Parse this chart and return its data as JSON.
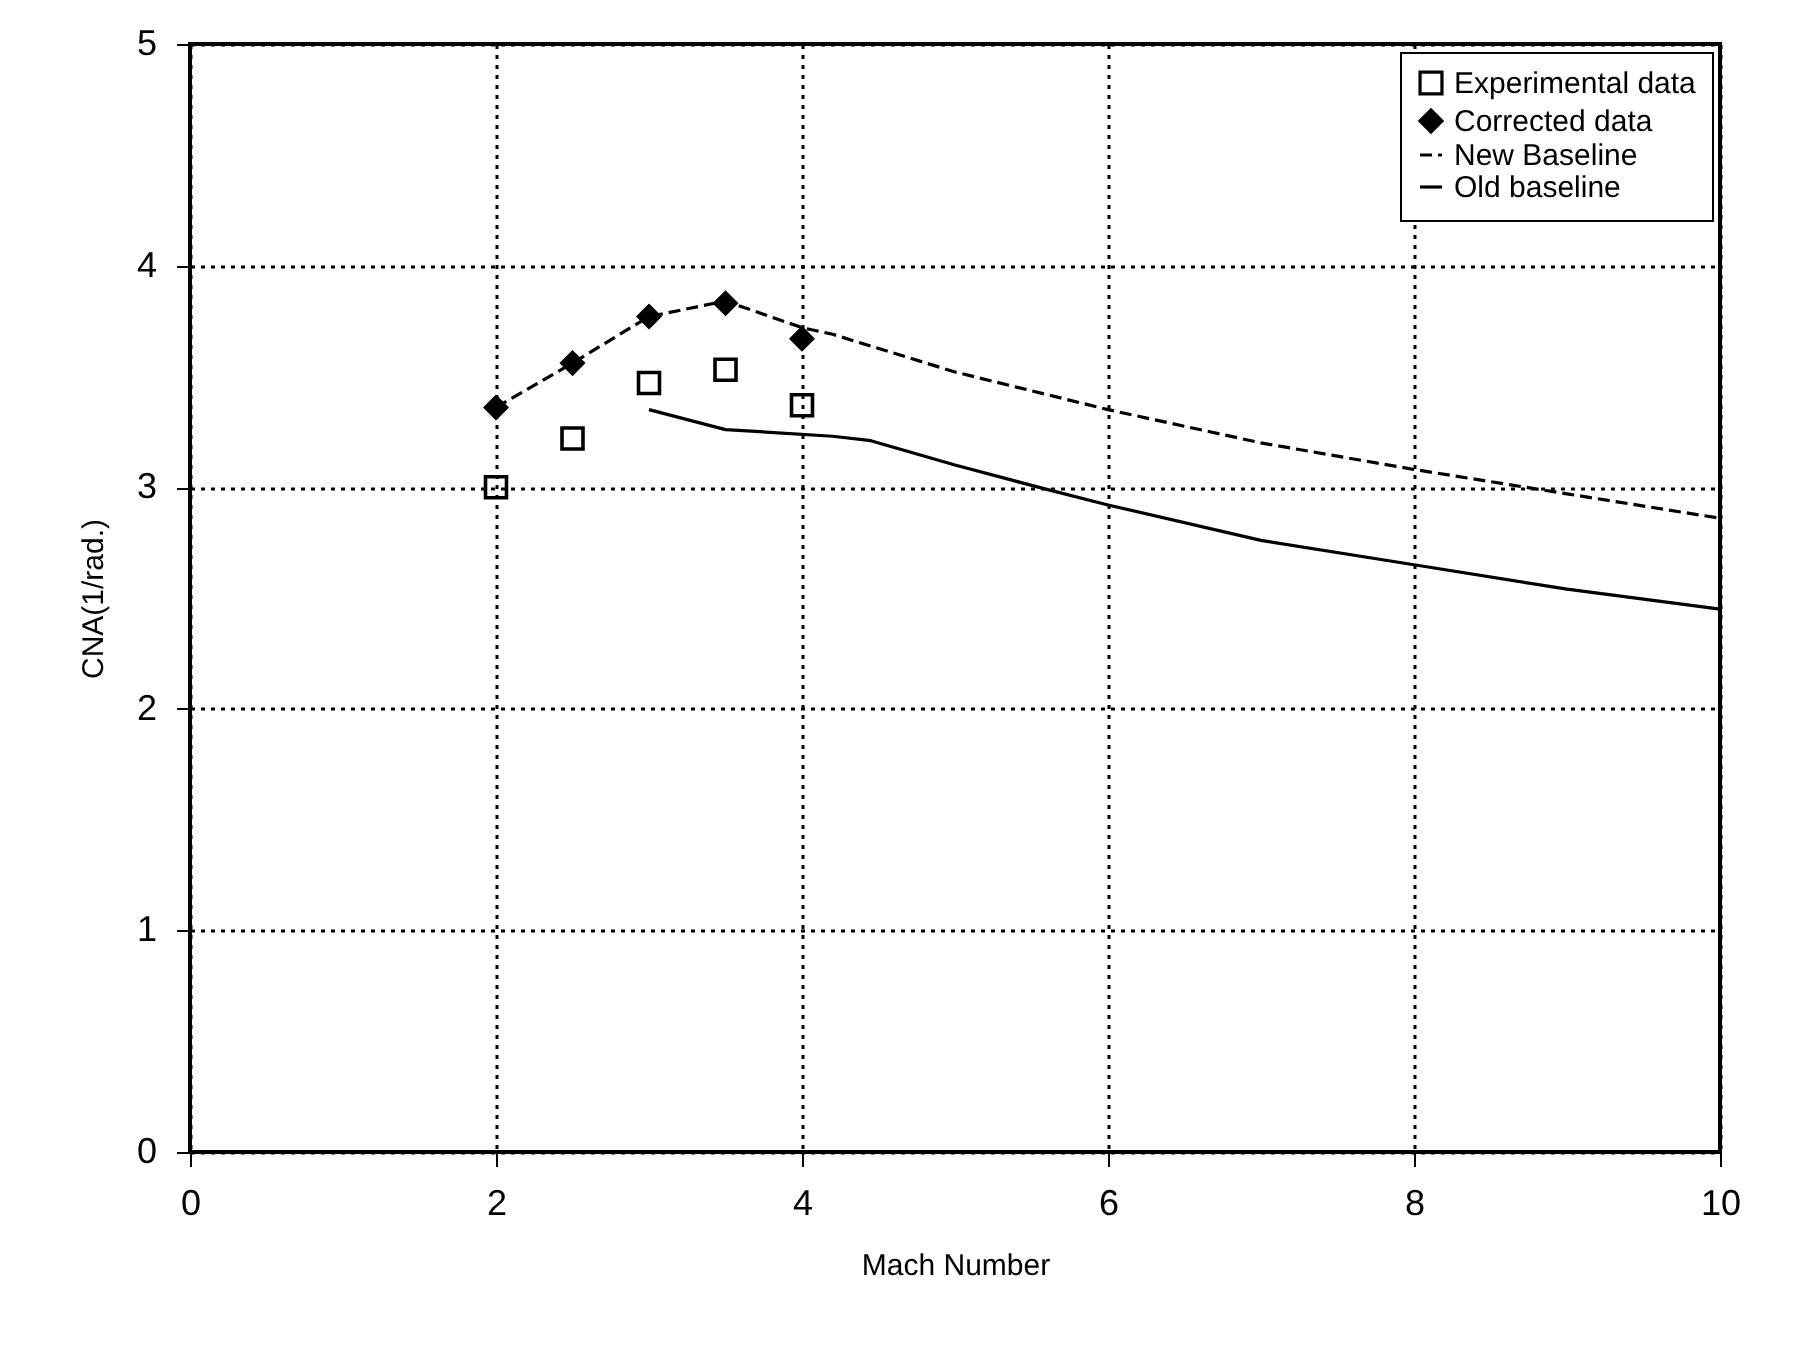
{
  "chart_data": {
    "type": "line",
    "xlabel": "Mach Number",
    "ylabel": "CNA(1/rad.)",
    "xlim": [
      0,
      10
    ],
    "ylim": [
      0,
      5
    ],
    "xticks": [
      0,
      2,
      4,
      6,
      8,
      10
    ],
    "yticks": [
      0,
      1,
      2,
      3,
      4,
      5
    ],
    "grid": true,
    "legend": "top right",
    "series": [
      {
        "name": "Experimental data",
        "type": "scatter",
        "marker": "square",
        "color": "#000000",
        "x": [
          2,
          2.5,
          3,
          3.5,
          4
        ],
        "values": [
          3.0,
          3.22,
          3.47,
          3.53,
          3.37
        ]
      },
      {
        "name": "Corrected data",
        "type": "scatter",
        "marker": "diamond",
        "color": "#000000",
        "x": [
          2,
          2.5,
          3,
          3.5,
          4
        ],
        "values": [
          3.36,
          3.56,
          3.77,
          3.83,
          3.67
        ]
      },
      {
        "name": "New Baseline",
        "type": "line",
        "line_style": "dashed",
        "color": "#000000",
        "x": [
          2,
          2.5,
          3,
          3.5,
          4,
          4.2,
          5,
          6,
          7,
          8,
          9,
          10
        ],
        "values": [
          3.36,
          3.56,
          3.77,
          3.84,
          3.72,
          3.69,
          3.52,
          3.35,
          3.2,
          3.08,
          2.97,
          2.86
        ]
      },
      {
        "name": "Old baseline",
        "type": "line",
        "line_style": "solid",
        "color": "#000000",
        "x": [
          3,
          3.5,
          4.2,
          4.45,
          5,
          5.6,
          6,
          7,
          8,
          9,
          10
        ],
        "values": [
          3.35,
          3.26,
          3.23,
          3.21,
          3.1,
          2.99,
          2.92,
          2.76,
          2.65,
          2.54,
          2.45
        ]
      }
    ]
  }
}
